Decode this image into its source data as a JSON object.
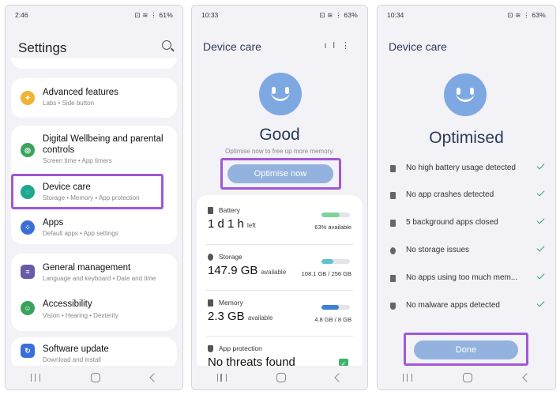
{
  "panel1": {
    "status": {
      "time": "2:46",
      "battery": "61%"
    },
    "title": "Settings",
    "items": [
      {
        "title": "Advanced features",
        "subtitle": "Labs  •  Side button",
        "color": "#f2b233"
      },
      {
        "title": "Digital Wellbeing and parental controls",
        "subtitle": "Screen time  •  App timers",
        "color": "#3aa35b"
      },
      {
        "title": "Device care",
        "subtitle": "Storage  •  Memory  •  App protection",
        "color": "#1fa88f"
      },
      {
        "title": "Apps",
        "subtitle": "Default apps  •  App settings",
        "color": "#3b6fd8"
      },
      {
        "title": "General management",
        "subtitle": "Language and keyboard  •  Date and time",
        "color": "#6c5aa8"
      },
      {
        "title": "Accessibility",
        "subtitle": "Vision  •  Hearing  •  Dexterity",
        "color": "#3aa35b"
      },
      {
        "title": "Software update",
        "subtitle": "Download and install",
        "color": "#3b6fd8"
      }
    ]
  },
  "panel2": {
    "status": {
      "time": "10:33",
      "battery": "63%"
    },
    "title": "Device care",
    "headline": "Good",
    "hint": "Optimise now to free up more memory.",
    "button": "Optimise now",
    "battery": {
      "label": "Battery",
      "value_main": "1 d 1 h",
      "value_suffix": "left",
      "caption": "63% available",
      "fill": 0.63,
      "color": "#7fd39a"
    },
    "storage": {
      "label": "Storage",
      "value_main": "147.9 GB",
      "value_suffix": "available",
      "caption": "108.1 GB / 256 GB",
      "fill": 0.42,
      "color": "#5dc3cf"
    },
    "memory": {
      "label": "Memory",
      "value_main": "2.3 GB",
      "value_suffix": "available",
      "caption": "4.8 GB / 8 GB",
      "fill": 0.6,
      "color": "#3f7fd6"
    },
    "protection": {
      "label": "App protection",
      "value": "No threats found"
    }
  },
  "panel3": {
    "status": {
      "time": "10:34",
      "battery": "63%"
    },
    "title": "Device care",
    "headline": "Optimised",
    "checks": [
      "No high battery usage detected",
      "No app crashes detected",
      "5 background apps closed",
      "No storage issues",
      "No apps using too much mem...",
      "No malware apps detected"
    ],
    "button": "Done"
  }
}
